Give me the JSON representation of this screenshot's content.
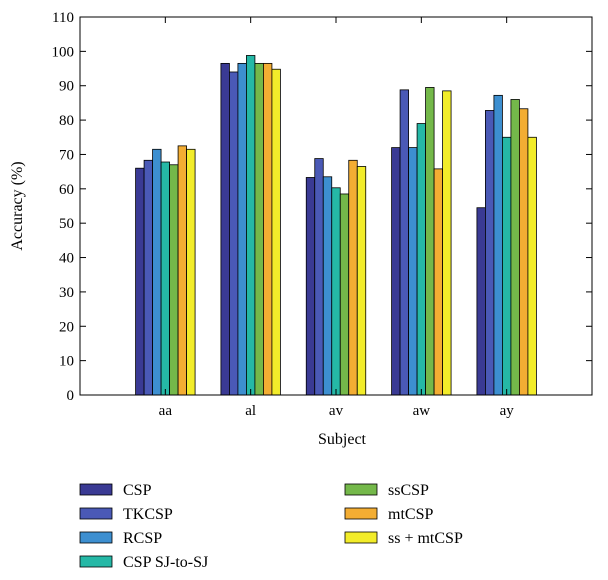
{
  "chart_data": {
    "type": "bar",
    "title": "",
    "xlabel": "Subject",
    "ylabel": "Accuracy (%)",
    "ylim": [
      0,
      110
    ],
    "yticks": [
      0,
      10,
      20,
      30,
      40,
      50,
      60,
      70,
      80,
      90,
      100,
      110
    ],
    "grid": false,
    "legend_placement": "bottom",
    "categories": [
      "aa",
      "al",
      "av",
      "aw",
      "ay"
    ],
    "series": [
      {
        "name": "CSP",
        "color": "#3a3a94",
        "values": [
          66,
          96.5,
          63.3,
          72,
          54.5
        ]
      },
      {
        "name": "TKCSP",
        "color": "#4a59b6",
        "values": [
          68.3,
          94,
          68.8,
          88.8,
          82.8
        ]
      },
      {
        "name": "RCSP",
        "color": "#3d8fd0",
        "values": [
          71.5,
          96.5,
          63.5,
          72,
          87.2
        ]
      },
      {
        "name": "CSP SJ-to-SJ",
        "color": "#25b8a6",
        "values": [
          67.8,
          98.8,
          60.3,
          79,
          75
        ]
      },
      {
        "name": "ssCSP",
        "color": "#74b84a",
        "values": [
          67,
          96.5,
          58.5,
          89.5,
          86
        ]
      },
      {
        "name": "mtCSP",
        "color": "#f3ad33",
        "values": [
          72.5,
          96.5,
          68.3,
          65.8,
          83.3
        ]
      },
      {
        "name": "ss + mtCSP",
        "color": "#f2ec2a",
        "values": [
          71.5,
          94.8,
          66.5,
          88.5,
          75
        ]
      }
    ]
  }
}
